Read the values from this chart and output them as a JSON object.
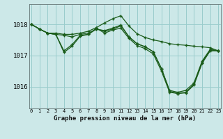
{
  "title": "Graphe pression niveau de la mer (hPa)",
  "bg_color": "#cce8e8",
  "grid_color": "#99cccc",
  "line_color": "#1a5c1a",
  "x_ticks": [
    0,
    1,
    2,
    3,
    4,
    5,
    6,
    7,
    8,
    9,
    10,
    11,
    12,
    13,
    14,
    15,
    16,
    17,
    18,
    19,
    20,
    21,
    22,
    23
  ],
  "y_ticks": [
    1016,
    1017,
    1018
  ],
  "ylim": [
    1015.3,
    1018.65
  ],
  "xlim": [
    -0.3,
    23.3
  ],
  "lines": [
    [
      1018.0,
      1017.85,
      1017.72,
      1017.72,
      1017.68,
      1017.68,
      1017.72,
      1017.78,
      1017.9,
      1018.05,
      1018.18,
      1018.28,
      1017.95,
      1017.7,
      1017.58,
      1017.5,
      1017.45,
      1017.38,
      1017.35,
      1017.33,
      1017.3,
      1017.28,
      1017.25,
      1017.15
    ],
    [
      1018.0,
      1017.85,
      1017.72,
      1017.68,
      1017.65,
      1017.6,
      1017.68,
      1017.72,
      1017.85,
      1017.78,
      1017.85,
      1017.95,
      1017.6,
      1017.38,
      1017.28,
      1017.12,
      1016.58,
      1015.88,
      1015.82,
      1015.88,
      1016.12,
      1016.82,
      1017.2,
      1017.15
    ],
    [
      1018.0,
      1017.85,
      1017.72,
      1017.68,
      1017.1,
      1017.3,
      1017.62,
      1017.68,
      1017.85,
      1017.8,
      1017.88,
      1017.98,
      1017.6,
      1017.38,
      1017.28,
      1017.12,
      1016.58,
      1015.85,
      1015.78,
      1015.82,
      1016.08,
      1016.78,
      1017.18,
      1017.15
    ],
    [
      1018.0,
      1017.85,
      1017.72,
      1017.68,
      1017.15,
      1017.35,
      1017.65,
      1017.68,
      1017.88,
      1017.72,
      1017.82,
      1017.88,
      1017.55,
      1017.32,
      1017.22,
      1017.05,
      1016.5,
      1015.82,
      1015.78,
      1015.8,
      1016.05,
      1016.75,
      1017.15,
      1017.15
    ]
  ]
}
